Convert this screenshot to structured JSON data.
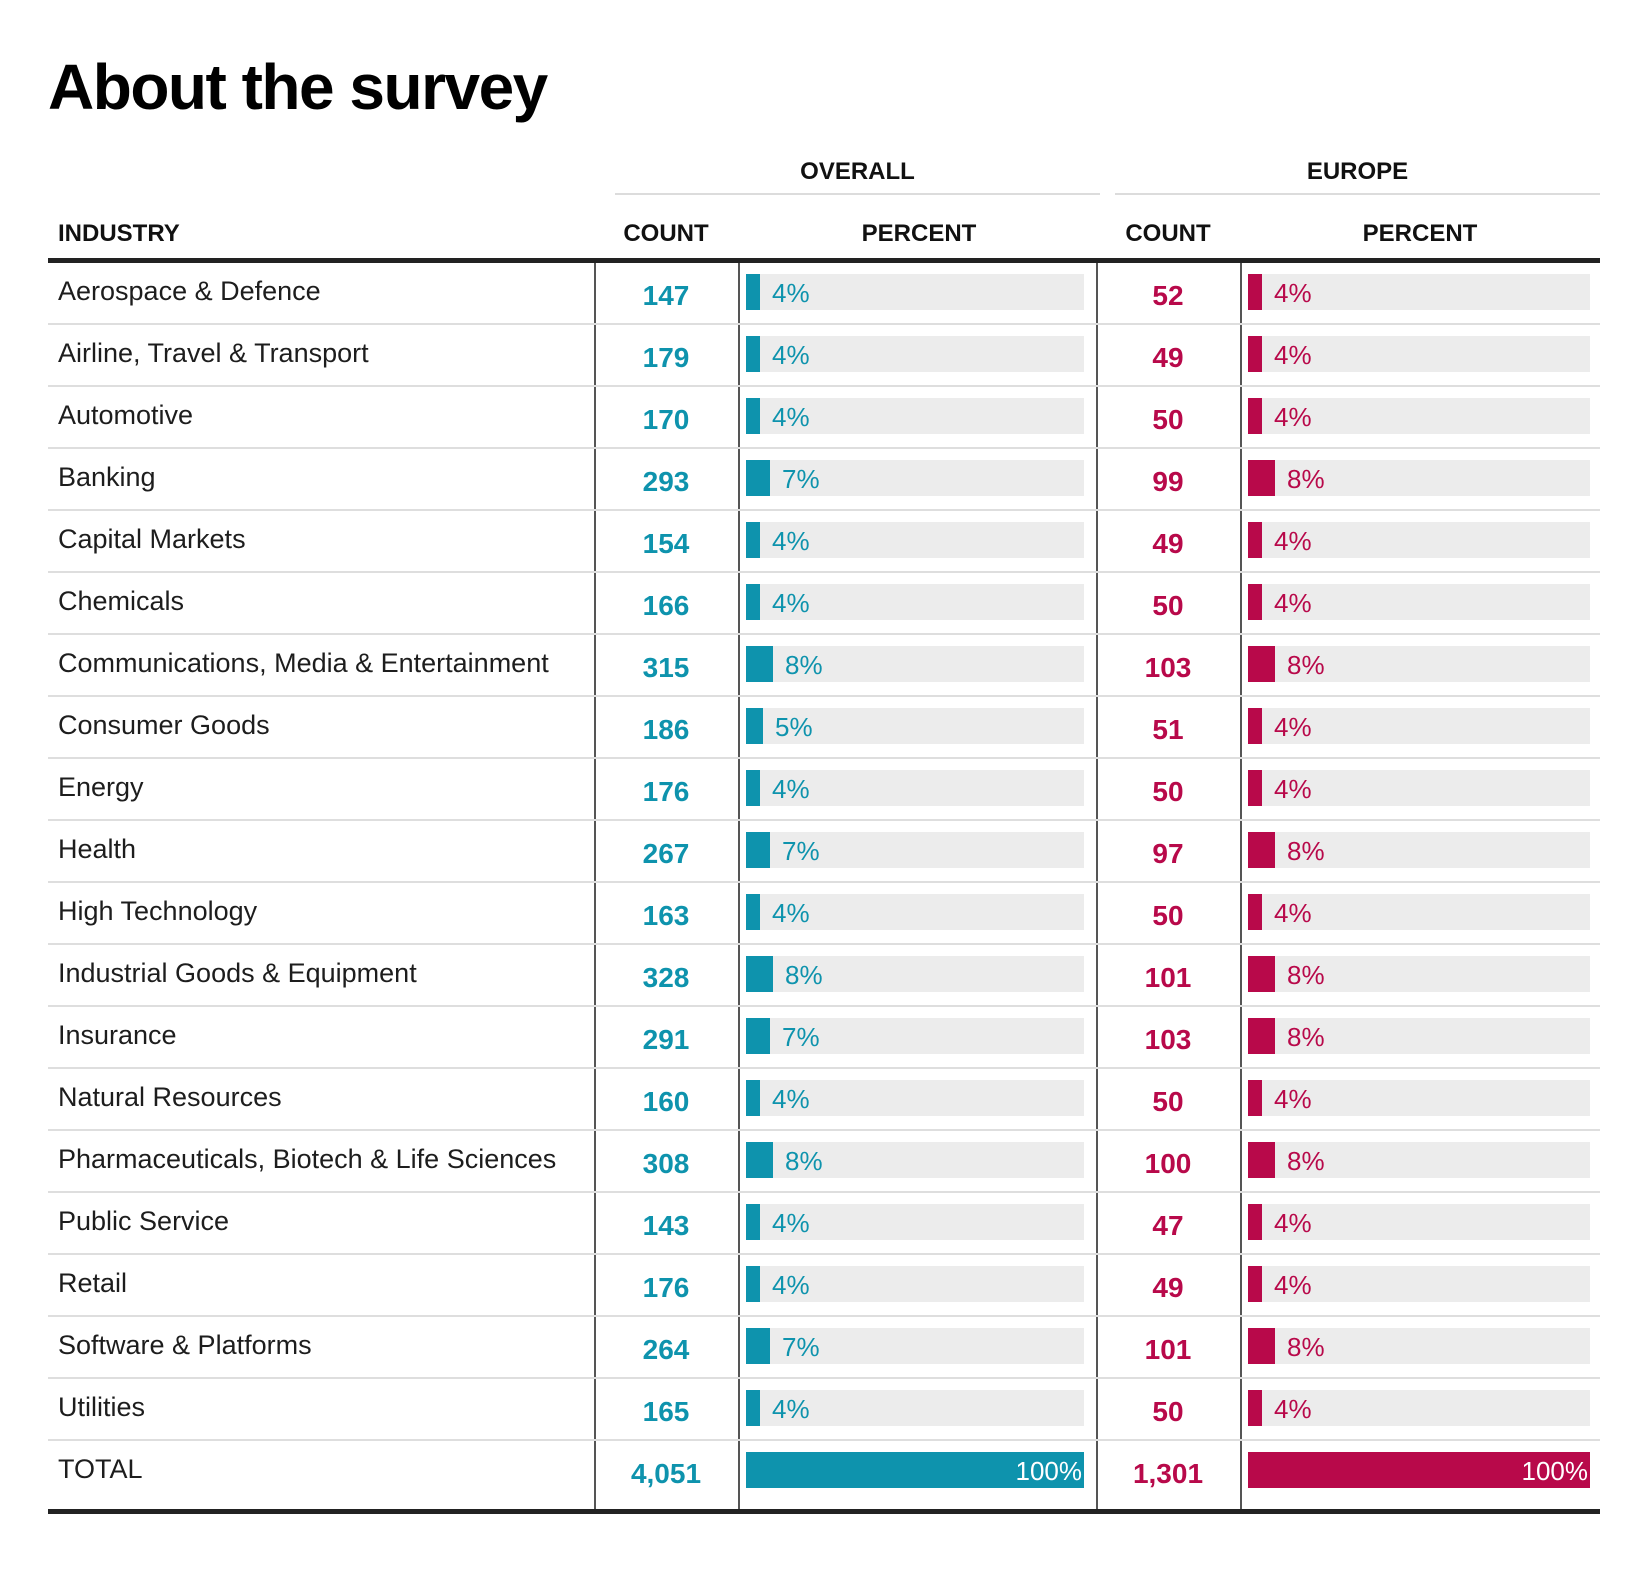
{
  "title": "About the survey",
  "groups": {
    "overall": "OVERALL",
    "europe": "EUROPE"
  },
  "columns": {
    "industry": "INDUSTRY",
    "count": "COUNT",
    "percent": "PERCENT"
  },
  "colors": {
    "overall": "#0e93ad",
    "europe": "#b8094a",
    "track": "#ececec"
  },
  "chart_data": {
    "type": "table",
    "title": "About the survey",
    "rows": [
      {
        "industry": "Aerospace & Defence",
        "overall_count": "147",
        "overall_pct": "4%",
        "overall_frac": 0.04,
        "europe_count": "52",
        "europe_pct": "4%",
        "europe_frac": 0.04
      },
      {
        "industry": "Airline, Travel & Transport",
        "overall_count": "179",
        "overall_pct": "4%",
        "overall_frac": 0.04,
        "europe_count": "49",
        "europe_pct": "4%",
        "europe_frac": 0.04
      },
      {
        "industry": "Automotive",
        "overall_count": "170",
        "overall_pct": "4%",
        "overall_frac": 0.04,
        "europe_count": "50",
        "europe_pct": "4%",
        "europe_frac": 0.04
      },
      {
        "industry": "Banking",
        "overall_count": "293",
        "overall_pct": "7%",
        "overall_frac": 0.07,
        "europe_count": "99",
        "europe_pct": "8%",
        "europe_frac": 0.08
      },
      {
        "industry": "Capital Markets",
        "overall_count": "154",
        "overall_pct": "4%",
        "overall_frac": 0.04,
        "europe_count": "49",
        "europe_pct": "4%",
        "europe_frac": 0.04
      },
      {
        "industry": "Chemicals",
        "overall_count": "166",
        "overall_pct": "4%",
        "overall_frac": 0.04,
        "europe_count": "50",
        "europe_pct": "4%",
        "europe_frac": 0.04
      },
      {
        "industry": "Communications, Media & Entertainment",
        "overall_count": "315",
        "overall_pct": "8%",
        "overall_frac": 0.08,
        "europe_count": "103",
        "europe_pct": "8%",
        "europe_frac": 0.08
      },
      {
        "industry": "Consumer Goods",
        "overall_count": "186",
        "overall_pct": "5%",
        "overall_frac": 0.05,
        "europe_count": "51",
        "europe_pct": "4%",
        "europe_frac": 0.04
      },
      {
        "industry": "Energy",
        "overall_count": "176",
        "overall_pct": "4%",
        "overall_frac": 0.04,
        "europe_count": "50",
        "europe_pct": "4%",
        "europe_frac": 0.04
      },
      {
        "industry": "Health",
        "overall_count": "267",
        "overall_pct": "7%",
        "overall_frac": 0.07,
        "europe_count": "97",
        "europe_pct": "8%",
        "europe_frac": 0.08
      },
      {
        "industry": "High Technology",
        "overall_count": "163",
        "overall_pct": "4%",
        "overall_frac": 0.04,
        "europe_count": "50",
        "europe_pct": "4%",
        "europe_frac": 0.04
      },
      {
        "industry": "Industrial Goods & Equipment",
        "overall_count": "328",
        "overall_pct": "8%",
        "overall_frac": 0.08,
        "europe_count": "101",
        "europe_pct": "8%",
        "europe_frac": 0.08
      },
      {
        "industry": "Insurance",
        "overall_count": "291",
        "overall_pct": "7%",
        "overall_frac": 0.07,
        "europe_count": "103",
        "europe_pct": "8%",
        "europe_frac": 0.08
      },
      {
        "industry": "Natural Resources",
        "overall_count": "160",
        "overall_pct": "4%",
        "overall_frac": 0.04,
        "europe_count": "50",
        "europe_pct": "4%",
        "europe_frac": 0.04
      },
      {
        "industry": "Pharmaceuticals, Biotech & Life Sciences",
        "overall_count": "308",
        "overall_pct": "8%",
        "overall_frac": 0.08,
        "europe_count": "100",
        "europe_pct": "8%",
        "europe_frac": 0.08
      },
      {
        "industry": "Public Service",
        "overall_count": "143",
        "overall_pct": "4%",
        "overall_frac": 0.04,
        "europe_count": "47",
        "europe_pct": "4%",
        "europe_frac": 0.04
      },
      {
        "industry": "Retail",
        "overall_count": "176",
        "overall_pct": "4%",
        "overall_frac": 0.04,
        "europe_count": "49",
        "europe_pct": "4%",
        "europe_frac": 0.04
      },
      {
        "industry": "Software & Platforms",
        "overall_count": "264",
        "overall_pct": "7%",
        "overall_frac": 0.07,
        "europe_count": "101",
        "europe_pct": "8%",
        "europe_frac": 0.08
      },
      {
        "industry": "Utilities",
        "overall_count": "165",
        "overall_pct": "4%",
        "overall_frac": 0.04,
        "europe_count": "50",
        "europe_pct": "4%",
        "europe_frac": 0.04
      },
      {
        "industry": "TOTAL",
        "overall_count": "4,051",
        "overall_pct": "100%",
        "overall_frac": 1.0,
        "europe_count": "1,301",
        "europe_pct": "100%",
        "europe_frac": 1.0
      }
    ]
  }
}
